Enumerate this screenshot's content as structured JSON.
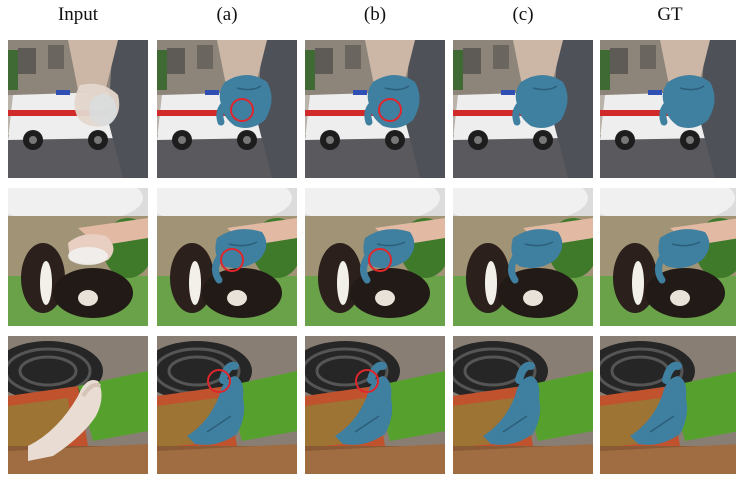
{
  "column_labels": [
    "Input",
    "(a)",
    "(b)",
    "(c)",
    "GT"
  ],
  "rows": [
    {
      "scene": "police-van-street",
      "cells": [
        "input-hand-holding-cup",
        "hand-mesh-red-circle",
        "hand-mesh-red-circle",
        "hand-mesh",
        "hand-mesh"
      ]
    },
    {
      "scene": "dogs-on-grass",
      "cells": [
        "input-hand-holding-object",
        "hand-mesh-red-circle",
        "hand-mesh-red-circle",
        "hand-mesh",
        "hand-mesh"
      ]
    },
    {
      "scene": "iron-and-green-object",
      "cells": [
        "input-hand-gesture",
        "hand-mesh-red-circle",
        "hand-mesh-red-circle",
        "hand-mesh",
        "hand-mesh"
      ]
    }
  ],
  "colors": {
    "hand_mesh": "#3f7fa0",
    "highlight_circle": "#e0262b"
  }
}
